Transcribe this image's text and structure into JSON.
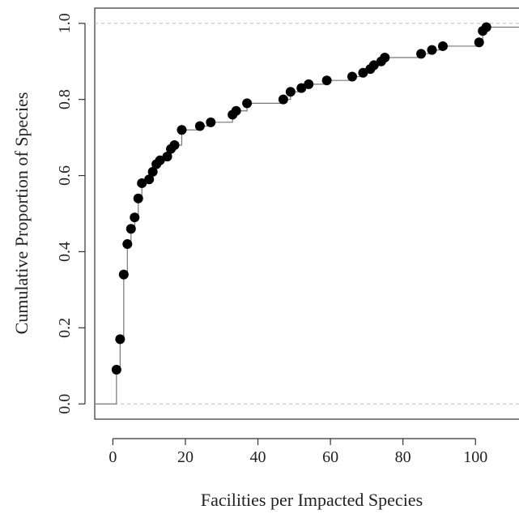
{
  "chart_data": {
    "type": "scatter",
    "subtype": "ecdf-step",
    "title": "",
    "xlabel": "Facilities per Impacted Species",
    "ylabel": "Cumulative Proportion of Species",
    "xlim": [
      -5,
      112
    ],
    "ylim": [
      -0.04,
      1.04
    ],
    "xticks": [
      0,
      20,
      40,
      60,
      80,
      100
    ],
    "yticks": [
      0.0,
      0.2,
      0.4,
      0.6,
      0.8,
      1.0
    ],
    "xtick_labels": [
      "0",
      "20",
      "40",
      "60",
      "80",
      "100"
    ],
    "ytick_labels": [
      "0.0",
      "0.2",
      "0.4",
      "0.6",
      "0.8",
      "1.0"
    ],
    "reference_lines_y": [
      0.0,
      1.0
    ],
    "grid": false,
    "legend": "none",
    "step_start_x": -5,
    "step_end_x": 112,
    "points": [
      {
        "x": 1,
        "y": 0.09
      },
      {
        "x": 2,
        "y": 0.17
      },
      {
        "x": 3,
        "y": 0.34
      },
      {
        "x": 4,
        "y": 0.42
      },
      {
        "x": 5,
        "y": 0.46
      },
      {
        "x": 6,
        "y": 0.49
      },
      {
        "x": 7,
        "y": 0.54
      },
      {
        "x": 8,
        "y": 0.58
      },
      {
        "x": 10,
        "y": 0.59
      },
      {
        "x": 11,
        "y": 0.61
      },
      {
        "x": 12,
        "y": 0.63
      },
      {
        "x": 13,
        "y": 0.64
      },
      {
        "x": 15,
        "y": 0.65
      },
      {
        "x": 16,
        "y": 0.67
      },
      {
        "x": 17,
        "y": 0.68
      },
      {
        "x": 19,
        "y": 0.72
      },
      {
        "x": 24,
        "y": 0.73
      },
      {
        "x": 27,
        "y": 0.74
      },
      {
        "x": 33,
        "y": 0.76
      },
      {
        "x": 34,
        "y": 0.77
      },
      {
        "x": 37,
        "y": 0.79
      },
      {
        "x": 47,
        "y": 0.8
      },
      {
        "x": 49,
        "y": 0.82
      },
      {
        "x": 52,
        "y": 0.83
      },
      {
        "x": 54,
        "y": 0.84
      },
      {
        "x": 59,
        "y": 0.85
      },
      {
        "x": 66,
        "y": 0.86
      },
      {
        "x": 69,
        "y": 0.87
      },
      {
        "x": 71,
        "y": 0.88
      },
      {
        "x": 72,
        "y": 0.89
      },
      {
        "x": 74,
        "y": 0.9
      },
      {
        "x": 75,
        "y": 0.91
      },
      {
        "x": 85,
        "y": 0.92
      },
      {
        "x": 88,
        "y": 0.93
      },
      {
        "x": 91,
        "y": 0.94
      },
      {
        "x": 101,
        "y": 0.95
      },
      {
        "x": 102,
        "y": 0.98
      },
      {
        "x": 103,
        "y": 0.99
      }
    ],
    "colors": {
      "points": "#000000",
      "step_line": "#777777",
      "reference_line": "#bbbbbb",
      "frame": "#333333"
    }
  }
}
